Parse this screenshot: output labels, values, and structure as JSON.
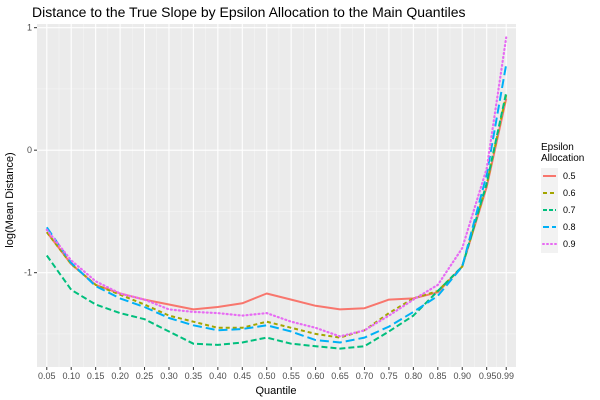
{
  "chart_data": {
    "type": "line",
    "title": "Distance to the True Slope by Epsilon Allocation to the Main Quantiles",
    "xlabel": "Quantile",
    "ylabel": "log(Mean Distance)",
    "x": [
      0.05,
      0.1,
      0.15,
      0.2,
      0.25,
      0.3,
      0.35,
      0.4,
      0.45,
      0.5,
      0.55,
      0.6,
      0.65,
      0.7,
      0.75,
      0.8,
      0.85,
      0.9,
      0.95,
      0.99
    ],
    "x_tick_labels": [
      "0.05",
      "0.10",
      "0.15",
      "0.20",
      "0.25",
      "0.30",
      "0.35",
      "0.40",
      "0.45",
      "0.50",
      "0.55",
      "0.60",
      "0.65",
      "0.70",
      "0.75",
      "0.80",
      "0.85",
      "0.90",
      "0.950.99"
    ],
    "y_ticks": [
      1,
      0,
      -1
    ],
    "y_tick_labels": [
      "1",
      "0",
      "-1"
    ],
    "xlim": [
      0.03,
      1.01
    ],
    "ylim": [
      -1.77,
      1.03
    ],
    "grid": true,
    "legend": {
      "title_line1": "Epsilon",
      "title_line2": "Allocation",
      "placement": "right"
    },
    "series": [
      {
        "name": "0.5",
        "color": "#F8766D",
        "dash": "solid",
        "values": [
          -0.67,
          -0.93,
          -1.1,
          -1.17,
          -1.22,
          -1.26,
          -1.3,
          -1.28,
          -1.25,
          -1.17,
          -1.22,
          -1.27,
          -1.3,
          -1.29,
          -1.22,
          -1.21,
          -1.16,
          -0.95,
          -0.3,
          0.42
        ]
      },
      {
        "name": "0.6",
        "color": "#A3A500",
        "dash": "4,3",
        "values": [
          -0.67,
          -0.93,
          -1.1,
          -1.18,
          -1.26,
          -1.35,
          -1.4,
          -1.45,
          -1.45,
          -1.4,
          -1.45,
          -1.5,
          -1.53,
          -1.47,
          -1.33,
          -1.21,
          -1.15,
          -0.95,
          -0.28,
          0.45
        ]
      },
      {
        "name": "0.7",
        "color": "#00BF7D",
        "dash": "6,3",
        "values": [
          -0.86,
          -1.14,
          -1.26,
          -1.33,
          -1.38,
          -1.48,
          -1.58,
          -1.59,
          -1.57,
          -1.53,
          -1.58,
          -1.6,
          -1.62,
          -1.6,
          -1.48,
          -1.35,
          -1.15,
          -0.95,
          -0.27,
          0.47
        ]
      },
      {
        "name": "0.8",
        "color": "#00B0F6",
        "dash": "9,4",
        "values": [
          -0.63,
          -0.92,
          -1.11,
          -1.21,
          -1.28,
          -1.37,
          -1.43,
          -1.47,
          -1.46,
          -1.43,
          -1.48,
          -1.55,
          -1.57,
          -1.53,
          -1.44,
          -1.32,
          -1.19,
          -0.95,
          -0.2,
          0.7
        ]
      },
      {
        "name": "0.9",
        "color": "#E76BF3",
        "dash": "1,3",
        "values": [
          -0.65,
          -0.9,
          -1.07,
          -1.17,
          -1.22,
          -1.3,
          -1.32,
          -1.33,
          -1.35,
          -1.33,
          -1.4,
          -1.45,
          -1.52,
          -1.47,
          -1.35,
          -1.22,
          -1.1,
          -0.8,
          -0.15,
          0.92
        ]
      }
    ]
  }
}
